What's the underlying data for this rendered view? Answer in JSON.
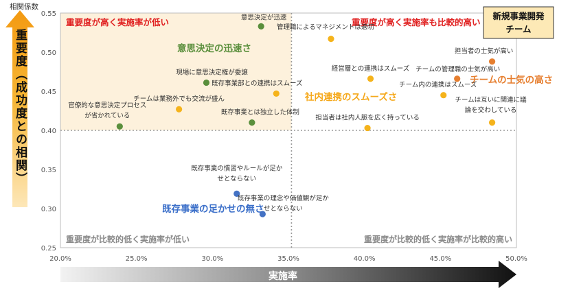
{
  "chart_data": {
    "type": "scatter",
    "ylabel_top": "相関係数",
    "ylabel": "重要度（成功度との相関）",
    "xlabel": "実施率",
    "xlim": [
      0.2,
      0.5
    ],
    "ylim": [
      0.25,
      0.55
    ],
    "x_ticks": [
      0.2,
      0.25,
      0.3,
      0.35,
      0.4,
      0.45,
      0.5
    ],
    "x_tick_labels": [
      "20.0%",
      "25.0%",
      "30.0%",
      "35.0%",
      "40.0%",
      "45.0%",
      "50.0%"
    ],
    "y_ticks": [
      0.25,
      0.3,
      0.35,
      0.4,
      0.45,
      0.5,
      0.55
    ],
    "y_tick_labels": [
      "0.25",
      "0.30",
      "0.35",
      "0.40",
      "0.45",
      "0.50",
      "0.55"
    ],
    "x_divider": 0.352,
    "y_divider": 0.4,
    "quadrant_labels": {
      "top_left": "重要度が高く実施率が低い",
      "top_right": "重要度が高く実施率も比較的高い",
      "bottom_left": "重要度が比較的低く実施率が低い",
      "bottom_right": "重要度が比較的低く実施率が比較的高い"
    },
    "legend_box": {
      "title": "新規事業開発チーム"
    },
    "colors": {
      "green": "#5a8f3c",
      "yellow": "#f5b31b",
      "orange": "#e67e2e",
      "blue": "#4472c4",
      "quadrant_fill": "#fdf1dc",
      "red_label": "#e02020",
      "gray_label": "#888888"
    },
    "groups": [
      {
        "name": "意思決定の迅速さ",
        "color": "#5a8f3c",
        "points": [
          {
            "x": 0.332,
            "y": 0.533,
            "label": "意思決定が迅速"
          },
          {
            "x": 0.296,
            "y": 0.461,
            "label": "現場に意思決定権が委譲"
          },
          {
            "x": 0.239,
            "y": 0.405,
            "label": "官僚的な意思決定プロセスが省かれている"
          },
          {
            "x": 0.326,
            "y": 0.41,
            "label": "既存事業とは独立した体制"
          }
        ]
      },
      {
        "name": "社内連携のスムーズさ",
        "color": "#f5b31b",
        "points": [
          {
            "x": 0.378,
            "y": 0.517,
            "label": "管理職によるマネジメントは適切"
          },
          {
            "x": 0.342,
            "y": 0.447,
            "label": "既存事業部との連携はスムーズ"
          },
          {
            "x": 0.278,
            "y": 0.427,
            "label": "チームは業務外でも交流が盛ん"
          },
          {
            "x": 0.404,
            "y": 0.466,
            "label": "経営層との連携はスムーズ"
          },
          {
            "x": 0.402,
            "y": 0.403,
            "label": "担当者は社内人脈を広く持っている"
          },
          {
            "x": 0.452,
            "y": 0.445,
            "label": "チーム内の連携はスムーズ"
          },
          {
            "x": 0.484,
            "y": 0.41,
            "label": "チームは互いに関連に議論を交わしている"
          }
        ]
      },
      {
        "name": "チームの士気の高さ",
        "color": "#e67e2e",
        "points": [
          {
            "x": 0.484,
            "y": 0.488,
            "label": "担当者の士気が高い"
          },
          {
            "x": 0.461,
            "y": 0.466,
            "label": "チームの管理職の士気が高い"
          }
        ]
      },
      {
        "name": "既存事業の足かせの無さ",
        "color": "#4472c4",
        "points": [
          {
            "x": 0.316,
            "y": 0.319,
            "label": "既存事業の慣習やルールが足かせとならない"
          },
          {
            "x": 0.333,
            "y": 0.293,
            "label": "既存事業の理念や価値観が足かせとならない"
          }
        ]
      }
    ]
  }
}
